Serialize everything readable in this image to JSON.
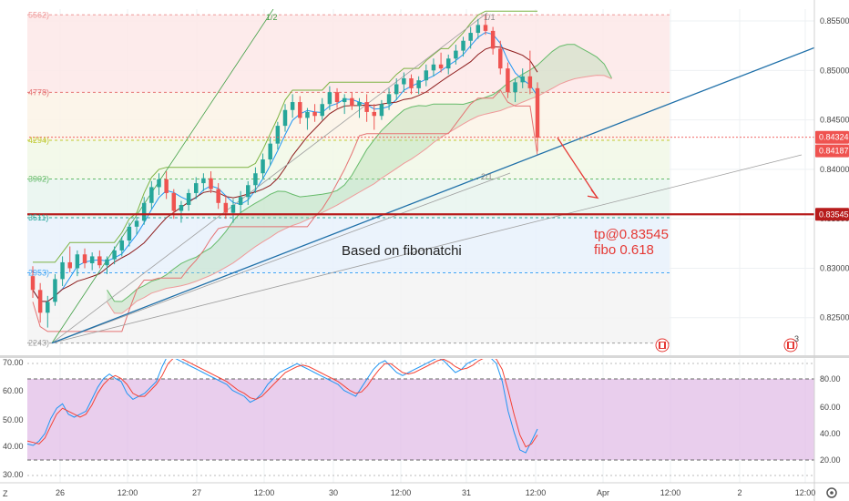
{
  "chart_data": {
    "type": "candlestick",
    "symbol_hint": "",
    "price_axis": {
      "ticks": [
        "0.85500",
        "0.85000",
        "0.84500",
        "0.84000",
        "0.83500",
        "0.83000",
        "0.82500"
      ],
      "ylim": [
        0.8212,
        0.8562
      ]
    },
    "price_badges": [
      {
        "value": 0.84324,
        "label": "0.84324",
        "color": "#ef5350"
      },
      {
        "value": 0.84187,
        "label": "0.84187",
        "color": "#ef5350"
      },
      {
        "value": 0.83545,
        "label": "0.83545",
        "color": "#b71c1c"
      }
    ],
    "time_axis": {
      "labels": [
        "26",
        "12:00",
        "27",
        "12:00",
        "30",
        "12:00",
        "31",
        "12:00",
        "Apr",
        "12:00",
        "2",
        "12:00"
      ]
    },
    "fib_levels": [
      {
        "label": "5562)",
        "value": 0.85562,
        "color": "#ef9a9a"
      },
      {
        "label": "4778)",
        "value": 0.84778,
        "color": "#e57373"
      },
      {
        "label": "4294)",
        "value": 0.84294,
        "color": "#c0ca33"
      },
      {
        "label": "3902)",
        "value": 0.83902,
        "color": "#66bb6a"
      },
      {
        "label": "3511)",
        "value": 0.83511,
        "color": "#26a69a"
      },
      {
        "label": "2953)",
        "value": 0.82953,
        "color": "#42a5f5"
      },
      {
        "label": "2243)",
        "value": 0.82243,
        "color": "#9e9e9e"
      }
    ],
    "gann_fan_labels": [
      "1/2",
      "1/1",
      "2/1"
    ],
    "annotations": {
      "main_text": "Based on fibonatchi",
      "target_line1": "tp@0.83545",
      "target_line2": "fibo 0.618"
    },
    "candles": [
      [
        0.8292,
        0.8302,
        0.827,
        0.8278
      ],
      [
        0.8278,
        0.8285,
        0.8245,
        0.8255
      ],
      [
        0.8255,
        0.8272,
        0.824,
        0.8266
      ],
      [
        0.8266,
        0.8294,
        0.8262,
        0.8289
      ],
      [
        0.8289,
        0.8312,
        0.8282,
        0.8306
      ],
      [
        0.8306,
        0.8322,
        0.8296,
        0.83
      ],
      [
        0.83,
        0.8318,
        0.8292,
        0.8314
      ],
      [
        0.8314,
        0.832,
        0.83,
        0.8305
      ],
      [
        0.8305,
        0.8316,
        0.8298,
        0.8312
      ],
      [
        0.8312,
        0.8318,
        0.83,
        0.8303
      ],
      [
        0.8303,
        0.8312,
        0.8294,
        0.8309
      ],
      [
        0.8309,
        0.8322,
        0.8304,
        0.8318
      ],
      [
        0.8318,
        0.8332,
        0.8312,
        0.8328
      ],
      [
        0.8328,
        0.8346,
        0.8322,
        0.8342
      ],
      [
        0.8342,
        0.8352,
        0.8334,
        0.8348
      ],
      [
        0.8348,
        0.8372,
        0.8344,
        0.8366
      ],
      [
        0.8366,
        0.8388,
        0.836,
        0.8382
      ],
      [
        0.8382,
        0.8396,
        0.8374,
        0.839
      ],
      [
        0.839,
        0.8398,
        0.837,
        0.8376
      ],
      [
        0.8376,
        0.838,
        0.835,
        0.8358
      ],
      [
        0.8358,
        0.8368,
        0.8346,
        0.8364
      ],
      [
        0.8364,
        0.838,
        0.8358,
        0.8376
      ],
      [
        0.8376,
        0.8392,
        0.837,
        0.8386
      ],
      [
        0.8386,
        0.8396,
        0.8378,
        0.8391
      ],
      [
        0.8391,
        0.8398,
        0.8376,
        0.838
      ],
      [
        0.838,
        0.8386,
        0.836,
        0.8366
      ],
      [
        0.8366,
        0.8374,
        0.835,
        0.8356
      ],
      [
        0.8356,
        0.837,
        0.8346,
        0.8364
      ],
      [
        0.8364,
        0.8378,
        0.8356,
        0.8372
      ],
      [
        0.8372,
        0.8388,
        0.8364,
        0.8384
      ],
      [
        0.8384,
        0.8402,
        0.8376,
        0.8396
      ],
      [
        0.8396,
        0.8416,
        0.839,
        0.841
      ],
      [
        0.841,
        0.8432,
        0.8404,
        0.8426
      ],
      [
        0.8426,
        0.8448,
        0.842,
        0.8444
      ],
      [
        0.8444,
        0.8466,
        0.8438,
        0.846
      ],
      [
        0.846,
        0.8476,
        0.8452,
        0.8468
      ],
      [
        0.8468,
        0.8474,
        0.8446,
        0.8452
      ],
      [
        0.8452,
        0.8462,
        0.844,
        0.8458
      ],
      [
        0.8458,
        0.8466,
        0.8448,
        0.8454
      ],
      [
        0.8454,
        0.8472,
        0.845,
        0.8466
      ],
      [
        0.8466,
        0.8484,
        0.846,
        0.8478
      ],
      [
        0.8478,
        0.8482,
        0.8462,
        0.8468
      ],
      [
        0.8468,
        0.8476,
        0.8456,
        0.8472
      ],
      [
        0.8472,
        0.8478,
        0.846,
        0.8464
      ],
      [
        0.8464,
        0.8472,
        0.8452,
        0.8468
      ],
      [
        0.8468,
        0.8476,
        0.8448,
        0.8458
      ],
      [
        0.8458,
        0.8466,
        0.844,
        0.8454
      ],
      [
        0.8454,
        0.847,
        0.845,
        0.8466
      ],
      [
        0.8466,
        0.8482,
        0.846,
        0.8476
      ],
      [
        0.8476,
        0.8492,
        0.847,
        0.8486
      ],
      [
        0.8486,
        0.8498,
        0.8478,
        0.8492
      ],
      [
        0.8492,
        0.8496,
        0.8476,
        0.8482
      ],
      [
        0.8482,
        0.8494,
        0.8476,
        0.849
      ],
      [
        0.849,
        0.8506,
        0.8484,
        0.85
      ],
      [
        0.85,
        0.8512,
        0.8494,
        0.8506
      ],
      [
        0.8506,
        0.8518,
        0.8498,
        0.8502
      ],
      [
        0.8502,
        0.8516,
        0.8496,
        0.8512
      ],
      [
        0.8512,
        0.8526,
        0.8506,
        0.852
      ],
      [
        0.852,
        0.8534,
        0.8514,
        0.853
      ],
      [
        0.853,
        0.8544,
        0.8522,
        0.8538
      ],
      [
        0.8538,
        0.8552,
        0.8532,
        0.8546
      ],
      [
        0.8546,
        0.8556,
        0.8536,
        0.854
      ],
      [
        0.854,
        0.8544,
        0.8516,
        0.8522
      ],
      [
        0.8522,
        0.853,
        0.8496,
        0.8502
      ],
      [
        0.8502,
        0.8508,
        0.8472,
        0.8478
      ],
      [
        0.8478,
        0.8492,
        0.8468,
        0.8488
      ],
      [
        0.8488,
        0.8502,
        0.8482,
        0.8494
      ],
      [
        0.8494,
        0.852,
        0.8476,
        0.8482
      ],
      [
        0.8482,
        0.8488,
        0.8418,
        0.8432
      ]
    ],
    "stoch_axis": {
      "left_ticks": [
        "70.00",
        "60.00",
        "50.00",
        "40.00",
        "30.00"
      ],
      "right_ticks": [
        "80.00",
        "60.00",
        "40.00",
        "20.00"
      ],
      "upper_band": 80,
      "lower_band": 20
    },
    "stoch_k": [
      28,
      27,
      30,
      35,
      45,
      52,
      55,
      48,
      46,
      48,
      50,
      58,
      66,
      72,
      75,
      72,
      70,
      62,
      58,
      60,
      62,
      66,
      70,
      80,
      88,
      86,
      84,
      82,
      80,
      78,
      76,
      74,
      72,
      70,
      68,
      64,
      62,
      60,
      56,
      58,
      62,
      68,
      72,
      76,
      78,
      80,
      82,
      80,
      78,
      76,
      74,
      72,
      70,
      68,
      64,
      62,
      60,
      66,
      72,
      78,
      82,
      84,
      80,
      76,
      74,
      76,
      78,
      80,
      82,
      84,
      86,
      84,
      80,
      76,
      78,
      82,
      84,
      86,
      88,
      86,
      82,
      70,
      50,
      36,
      24,
      22,
      30,
      38
    ],
    "stoch_d": [
      30,
      29,
      28,
      32,
      40,
      48,
      52,
      50,
      48,
      46,
      48,
      54,
      62,
      68,
      72,
      74,
      72,
      68,
      62,
      60,
      60,
      64,
      68,
      74,
      82,
      86,
      86,
      84,
      82,
      80,
      78,
      76,
      74,
      72,
      70,
      67,
      64,
      62,
      59,
      58,
      60,
      64,
      68,
      72,
      76,
      78,
      80,
      81,
      80,
      78,
      76,
      74,
      72,
      70,
      67,
      64,
      62,
      63,
      67,
      73,
      78,
      82,
      82,
      79,
      76,
      75,
      76,
      78,
      80,
      82,
      84,
      85,
      83,
      80,
      78,
      79,
      81,
      84,
      86,
      87,
      85,
      78,
      64,
      48,
      34,
      26,
      28,
      34
    ]
  }
}
